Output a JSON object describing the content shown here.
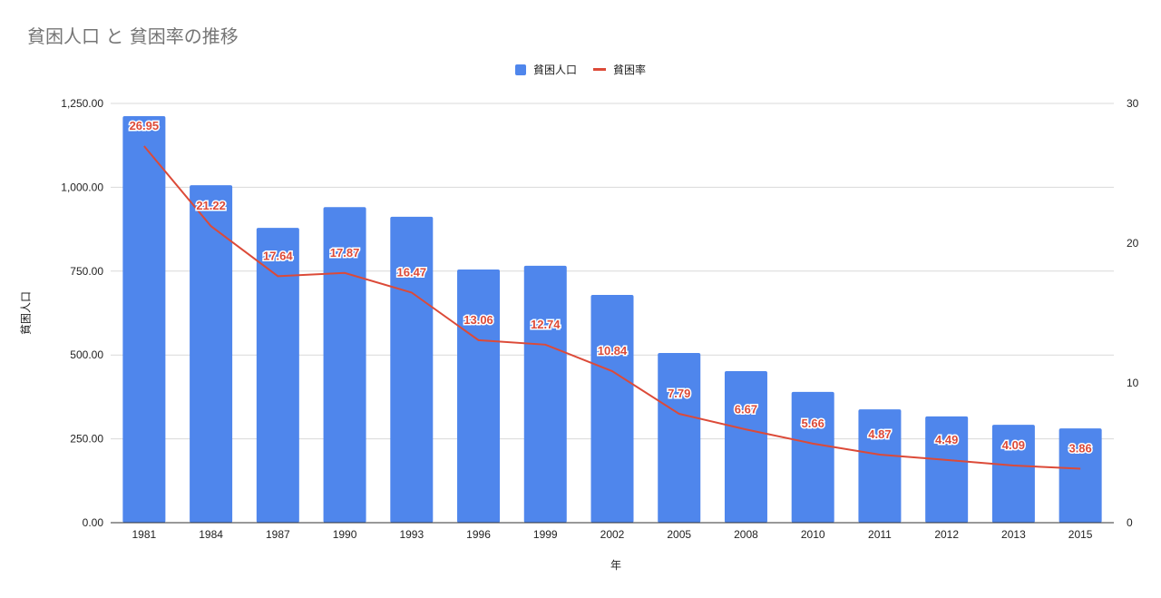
{
  "title": "貧困人口 と 貧困率の推移",
  "legend": {
    "bar_label": "貧困人口",
    "line_label": "貧困率"
  },
  "axes": {
    "left_label": "貧困人口",
    "x_label": "年"
  },
  "colors": {
    "bar": "#4f86ec",
    "line": "#dc4a38",
    "grid": "#d9d9d9"
  },
  "chart_data": {
    "type": "bar",
    "title": "貧困人口 と 貧困率の推移",
    "xlabel": "年",
    "ylabel": "貧困人口",
    "y2label": "",
    "categories": [
      "1981",
      "1984",
      "1987",
      "1990",
      "1993",
      "1996",
      "1999",
      "2002",
      "2005",
      "2008",
      "2010",
      "2011",
      "2012",
      "2013",
      "2015"
    ],
    "series": [
      {
        "name": "貧困人口",
        "type": "bar",
        "axis": "left",
        "values": [
          1212,
          1006,
          879,
          941,
          912,
          755,
          766,
          679,
          506,
          452,
          390,
          338,
          317,
          292,
          281
        ]
      },
      {
        "name": "貧困率",
        "type": "line",
        "axis": "right",
        "values": [
          26.95,
          21.22,
          17.64,
          17.87,
          16.47,
          13.06,
          12.74,
          10.84,
          7.79,
          6.67,
          5.66,
          4.87,
          4.49,
          4.09,
          3.86
        ],
        "data_labels": [
          "26.95",
          "21.22",
          "17.64",
          "17.87",
          "16.47",
          "13.06",
          "12.74",
          "10.84",
          "7.79",
          "6.67",
          "5.66",
          "4.87",
          "4.49",
          "4.09",
          "3.86"
        ]
      }
    ],
    "ylim": [
      0,
      1250
    ],
    "y2lim": [
      0,
      30
    ],
    "yticks": [
      "0.00",
      "250.00",
      "500.00",
      "750.00",
      "1,000.00",
      "1,250.00"
    ],
    "y2ticks": [
      "0",
      "10",
      "20",
      "30"
    ],
    "grid": true,
    "legend_position": "top"
  }
}
